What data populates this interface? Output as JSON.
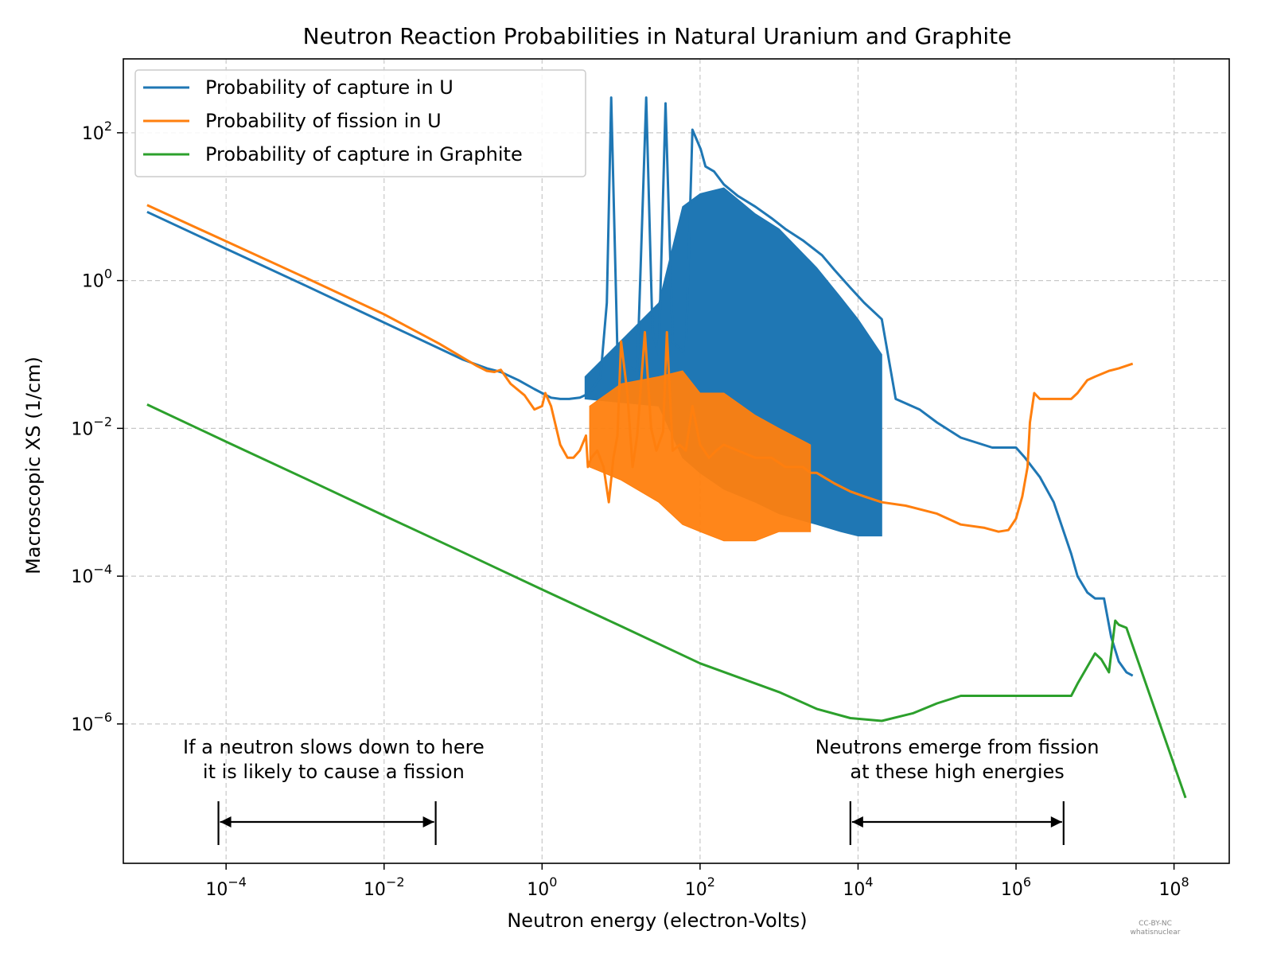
{
  "chart_data": {
    "type": "line",
    "title": "Neutron Reaction Probabilities in Natural Uranium and Graphite",
    "xlabel": "Neutron energy (electron-Volts)",
    "ylabel": "Macroscopic XS (1/cm)",
    "xscale": "log",
    "yscale": "log",
    "xlim": [
      5e-06,
      500000000.0
    ],
    "ylim": [
      1.3e-08,
      1000.0
    ],
    "grid": true,
    "legend_position": "top-left",
    "x_ticks": [
      {
        "value": 0.0001,
        "base": "10",
        "exp": "−4"
      },
      {
        "value": 0.01,
        "base": "10",
        "exp": "−2"
      },
      {
        "value": 1,
        "base": "10",
        "exp": "0"
      },
      {
        "value": 100,
        "base": "10",
        "exp": "2"
      },
      {
        "value": 10000,
        "base": "10",
        "exp": "4"
      },
      {
        "value": 1000000,
        "base": "10",
        "exp": "6"
      },
      {
        "value": 100000000,
        "base": "10",
        "exp": "8"
      }
    ],
    "y_ticks": [
      {
        "value": 1e-06,
        "base": "10",
        "exp": "−6"
      },
      {
        "value": 0.0001,
        "base": "10",
        "exp": "−4"
      },
      {
        "value": 0.01,
        "base": "10",
        "exp": "−2"
      },
      {
        "value": 1,
        "base": "10",
        "exp": "0"
      },
      {
        "value": 100,
        "base": "10",
        "exp": "2"
      }
    ],
    "series": [
      {
        "name": "Probability of capture in U",
        "color": "#1f77b4",
        "x": [
          1e-05,
          0.0001,
          0.001,
          0.01,
          0.1,
          0.2,
          0.3,
          0.5,
          0.8,
          1.0,
          1.3,
          1.7,
          2.2,
          3.0,
          4.0,
          5.5,
          6.6,
          7.5,
          9,
          12,
          16,
          20.8,
          25,
          30,
          36.6,
          45,
          55,
          66,
          80,
          102,
          117,
          150,
          200,
          300,
          500,
          800,
          1200,
          2000,
          3500,
          5000,
          8000,
          12000,
          20000,
          30000,
          60000,
          100000,
          200000,
          500000,
          1000000,
          1300000,
          2000000,
          3000000,
          5000000,
          6000000,
          8000000,
          10000000,
          13000000,
          16000000,
          20000000,
          25000000,
          30000000
        ],
        "y": [
          8.5,
          2.7,
          0.86,
          0.27,
          0.085,
          0.065,
          0.058,
          0.045,
          0.034,
          0.03,
          0.026,
          0.025,
          0.025,
          0.026,
          0.03,
          0.05,
          0.5,
          300,
          0.1,
          0.07,
          0.06,
          300,
          0.2,
          0.1,
          250,
          0.15,
          0.12,
          0.1,
          110,
          60,
          35,
          30,
          20,
          14,
          10,
          7,
          5,
          3.5,
          2.2,
          1.4,
          0.8,
          0.5,
          0.3,
          0.025,
          0.018,
          0.012,
          0.0075,
          0.0055,
          0.0055,
          0.004,
          0.0022,
          0.001,
          0.0002,
          0.0001,
          6e-05,
          5e-05,
          5e-05,
          1.5e-05,
          7e-06,
          5e-06,
          4.5e-06
        ],
        "band": {
          "x": [
            3.5,
            30,
            60,
            100,
            200,
            500,
            1000,
            3000,
            6000,
            10000,
            20000
          ],
          "high": [
            0.05,
            0.5,
            10,
            15,
            18,
            8,
            5,
            1.5,
            0.6,
            0.3,
            0.1
          ],
          "low": [
            0.025,
            0.02,
            0.004,
            0.0025,
            0.0015,
            0.001,
            0.0007,
            0.0005,
            0.0004,
            0.00035,
            0.00035
          ]
        }
      },
      {
        "name": "Probability of fission in U",
        "color": "#ff7f0e",
        "x": [
          1e-05,
          0.0001,
          0.001,
          0.01,
          0.05,
          0.1,
          0.15,
          0.2,
          0.25,
          0.3,
          0.4,
          0.6,
          0.8,
          1.0,
          1.1,
          1.3,
          1.7,
          2.1,
          2.5,
          3.0,
          3.6,
          3.8,
          4.2,
          5.0,
          6.0,
          7.0,
          8.0,
          9.0,
          10,
          12,
          14,
          16,
          20,
          24,
          28,
          34,
          38,
          45,
          55,
          66,
          80,
          100,
          130,
          160,
          200,
          300,
          500,
          800,
          1200,
          2000,
          2500,
          3000,
          5000,
          8000,
          12000,
          20000,
          40000,
          100000,
          200000,
          400000,
          600000,
          800000,
          1000000,
          1200000,
          1400000,
          1500000,
          1700000,
          2000000,
          3000000,
          5000000,
          6000000,
          8000000,
          10000000,
          15000000,
          20000000,
          30000000
        ],
        "y": [
          10.5,
          3.4,
          1.1,
          0.35,
          0.14,
          0.09,
          0.07,
          0.06,
          0.058,
          0.062,
          0.04,
          0.028,
          0.018,
          0.02,
          0.03,
          0.02,
          0.006,
          0.004,
          0.004,
          0.005,
          0.008,
          0.003,
          0.004,
          0.005,
          0.003,
          0.001,
          0.004,
          0.008,
          0.15,
          0.03,
          0.003,
          0.008,
          0.2,
          0.01,
          0.005,
          0.009,
          0.2,
          0.005,
          0.006,
          0.005,
          0.02,
          0.006,
          0.004,
          0.005,
          0.006,
          0.005,
          0.004,
          0.004,
          0.003,
          0.003,
          0.0025,
          0.0025,
          0.0018,
          0.0014,
          0.0012,
          0.001,
          0.0009,
          0.0007,
          0.0005,
          0.00045,
          0.0004,
          0.00042,
          0.0006,
          0.0012,
          0.003,
          0.012,
          0.03,
          0.025,
          0.025,
          0.025,
          0.03,
          0.045,
          0.05,
          0.06,
          0.065,
          0.075
        ],
        "band": {
          "x": [
            4,
            10,
            30,
            60,
            100,
            200,
            500,
            1000,
            2500
          ],
          "high": [
            0.02,
            0.04,
            0.05,
            0.06,
            0.03,
            0.03,
            0.015,
            0.01,
            0.006
          ],
          "low": [
            0.003,
            0.002,
            0.001,
            0.0005,
            0.0004,
            0.0003,
            0.0003,
            0.0004,
            0.0004
          ]
        }
      },
      {
        "name": "Probability of capture in Graphite",
        "color": "#2ca02c",
        "x": [
          1e-05,
          0.0001,
          0.001,
          0.01,
          0.1,
          1,
          10,
          100,
          1000,
          3000,
          8000,
          20000,
          50000,
          100000,
          200000,
          1000000,
          2000000,
          5000000,
          6000000,
          10000000,
          12000000,
          15000000,
          18000000,
          20000000,
          25000000,
          140000000
        ],
        "y": [
          0.021,
          0.0066,
          0.0021,
          0.00066,
          0.00021,
          6.6e-05,
          2.1e-05,
          6.6e-06,
          2.7e-06,
          1.6e-06,
          1.2e-06,
          1.1e-06,
          1.4e-06,
          1.9e-06,
          2.4e-06,
          2.4e-06,
          2.4e-06,
          2.4e-06,
          3.5e-06,
          9e-06,
          7.5e-06,
          5e-06,
          2.5e-05,
          2.2e-05,
          2e-05,
          1e-07
        ]
      }
    ],
    "annotations": [
      {
        "lines": [
          "If a neutron slows down to here",
          "it is likely to cause a fission"
        ],
        "x_center": 0.0023,
        "arrow_from": 8e-05,
        "arrow_to": 0.045
      },
      {
        "lines": [
          "Neutrons emerge from fission",
          "at these high energies"
        ],
        "x_center": 180000,
        "arrow_from": 8000,
        "arrow_to": 4000000
      }
    ],
    "credit": [
      "CC-BY-NC",
      "whatisnuclear"
    ]
  }
}
